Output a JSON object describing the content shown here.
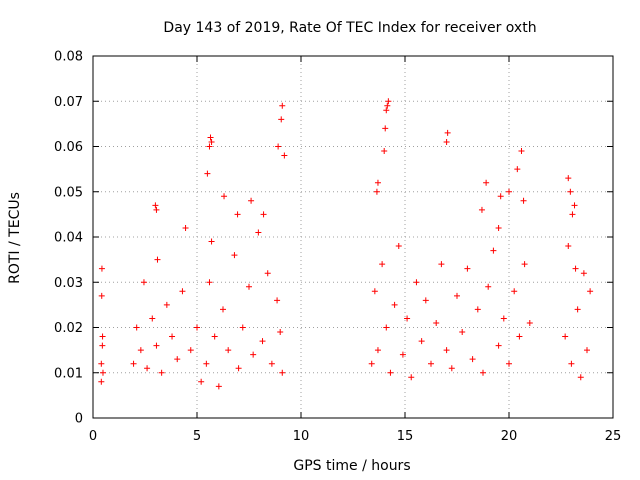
{
  "chart_data": {
    "type": "scatter",
    "title": "Day 143 of 2019, Rate Of TEC Index for receiver oxth",
    "xlabel": "GPS time / hours",
    "ylabel": "ROTI / TECUs",
    "xlim": [
      0,
      25
    ],
    "ylim": [
      0,
      0.08
    ],
    "xticks": [
      0,
      5,
      10,
      15,
      20,
      25
    ],
    "xtick_labels": [
      "0",
      "5",
      "10",
      "15",
      "20",
      "25"
    ],
    "yticks": [
      0,
      0.01,
      0.02,
      0.03,
      0.04,
      0.05,
      0.06,
      0.07,
      0.08
    ],
    "ytick_labels": [
      "0",
      "0.01",
      "0.02",
      "0.03",
      "0.04",
      "0.05",
      "0.06",
      "0.07",
      "0.08"
    ],
    "grid": true,
    "marker": "+",
    "color": "#ff0000",
    "series": [
      {
        "name": "ROTI",
        "x": [
          0.4,
          0.45,
          0.42,
          0.48,
          0.43,
          0.4,
          0.46,
          1.95,
          2.1,
          2.3,
          2.45,
          2.6,
          2.85,
          3.05,
          3.1,
          3.3,
          3.55,
          3.8,
          4.05,
          4.3,
          4.45,
          4.7,
          5.0,
          5.2,
          5.45,
          5.6,
          5.7,
          5.85,
          6.05,
          6.25,
          6.5,
          6.8,
          7.0,
          7.2,
          7.5,
          7.7,
          7.95,
          8.15,
          8.4,
          8.6,
          8.85,
          9.0,
          9.1,
          3.0,
          3.05,
          5.5,
          5.6,
          5.65,
          5.7,
          6.3,
          6.95,
          7.6,
          8.2,
          8.9,
          9.05,
          9.1,
          9.2,
          13.4,
          13.55,
          13.7,
          13.9,
          14.1,
          14.3,
          14.5,
          14.7,
          14.9,
          15.1,
          15.3,
          15.55,
          15.8,
          16.0,
          16.25,
          16.5,
          16.75,
          17.0,
          17.25,
          17.5,
          17.75,
          18.0,
          18.25,
          18.5,
          18.75,
          19.0,
          19.25,
          19.5,
          19.75,
          20.0,
          20.25,
          20.5,
          20.75,
          21.0,
          13.65,
          13.7,
          14.0,
          14.05,
          14.1,
          14.15,
          14.2,
          17.0,
          17.05,
          18.7,
          18.9,
          19.5,
          19.6,
          20.0,
          20.4,
          20.6,
          20.7,
          22.7,
          22.85,
          23.0,
          23.15,
          23.3,
          23.45,
          23.6,
          23.75,
          23.9,
          22.85,
          22.95,
          23.05,
          23.2
        ],
        "y": [
          0.008,
          0.016,
          0.027,
          0.01,
          0.033,
          0.012,
          0.018,
          0.012,
          0.02,
          0.015,
          0.03,
          0.011,
          0.022,
          0.016,
          0.035,
          0.01,
          0.025,
          0.018,
          0.013,
          0.028,
          0.042,
          0.015,
          0.02,
          0.008,
          0.012,
          0.03,
          0.039,
          0.018,
          0.007,
          0.024,
          0.015,
          0.036,
          0.011,
          0.02,
          0.029,
          0.014,
          0.041,
          0.017,
          0.032,
          0.012,
          0.026,
          0.019,
          0.01,
          0.047,
          0.046,
          0.054,
          0.06,
          0.062,
          0.061,
          0.049,
          0.045,
          0.048,
          0.045,
          0.06,
          0.066,
          0.069,
          0.058,
          0.012,
          0.028,
          0.015,
          0.034,
          0.02,
          0.01,
          0.025,
          0.038,
          0.014,
          0.022,
          0.009,
          0.03,
          0.017,
          0.026,
          0.012,
          0.021,
          0.034,
          0.015,
          0.011,
          0.027,
          0.019,
          0.033,
          0.013,
          0.024,
          0.01,
          0.029,
          0.037,
          0.016,
          0.022,
          0.012,
          0.028,
          0.018,
          0.034,
          0.021,
          0.05,
          0.052,
          0.059,
          0.064,
          0.068,
          0.069,
          0.07,
          0.061,
          0.063,
          0.046,
          0.052,
          0.042,
          0.049,
          0.05,
          0.055,
          0.059,
          0.048,
          0.018,
          0.038,
          0.012,
          0.047,
          0.024,
          0.009,
          0.032,
          0.015,
          0.028,
          0.053,
          0.05,
          0.045,
          0.033
        ]
      }
    ]
  }
}
